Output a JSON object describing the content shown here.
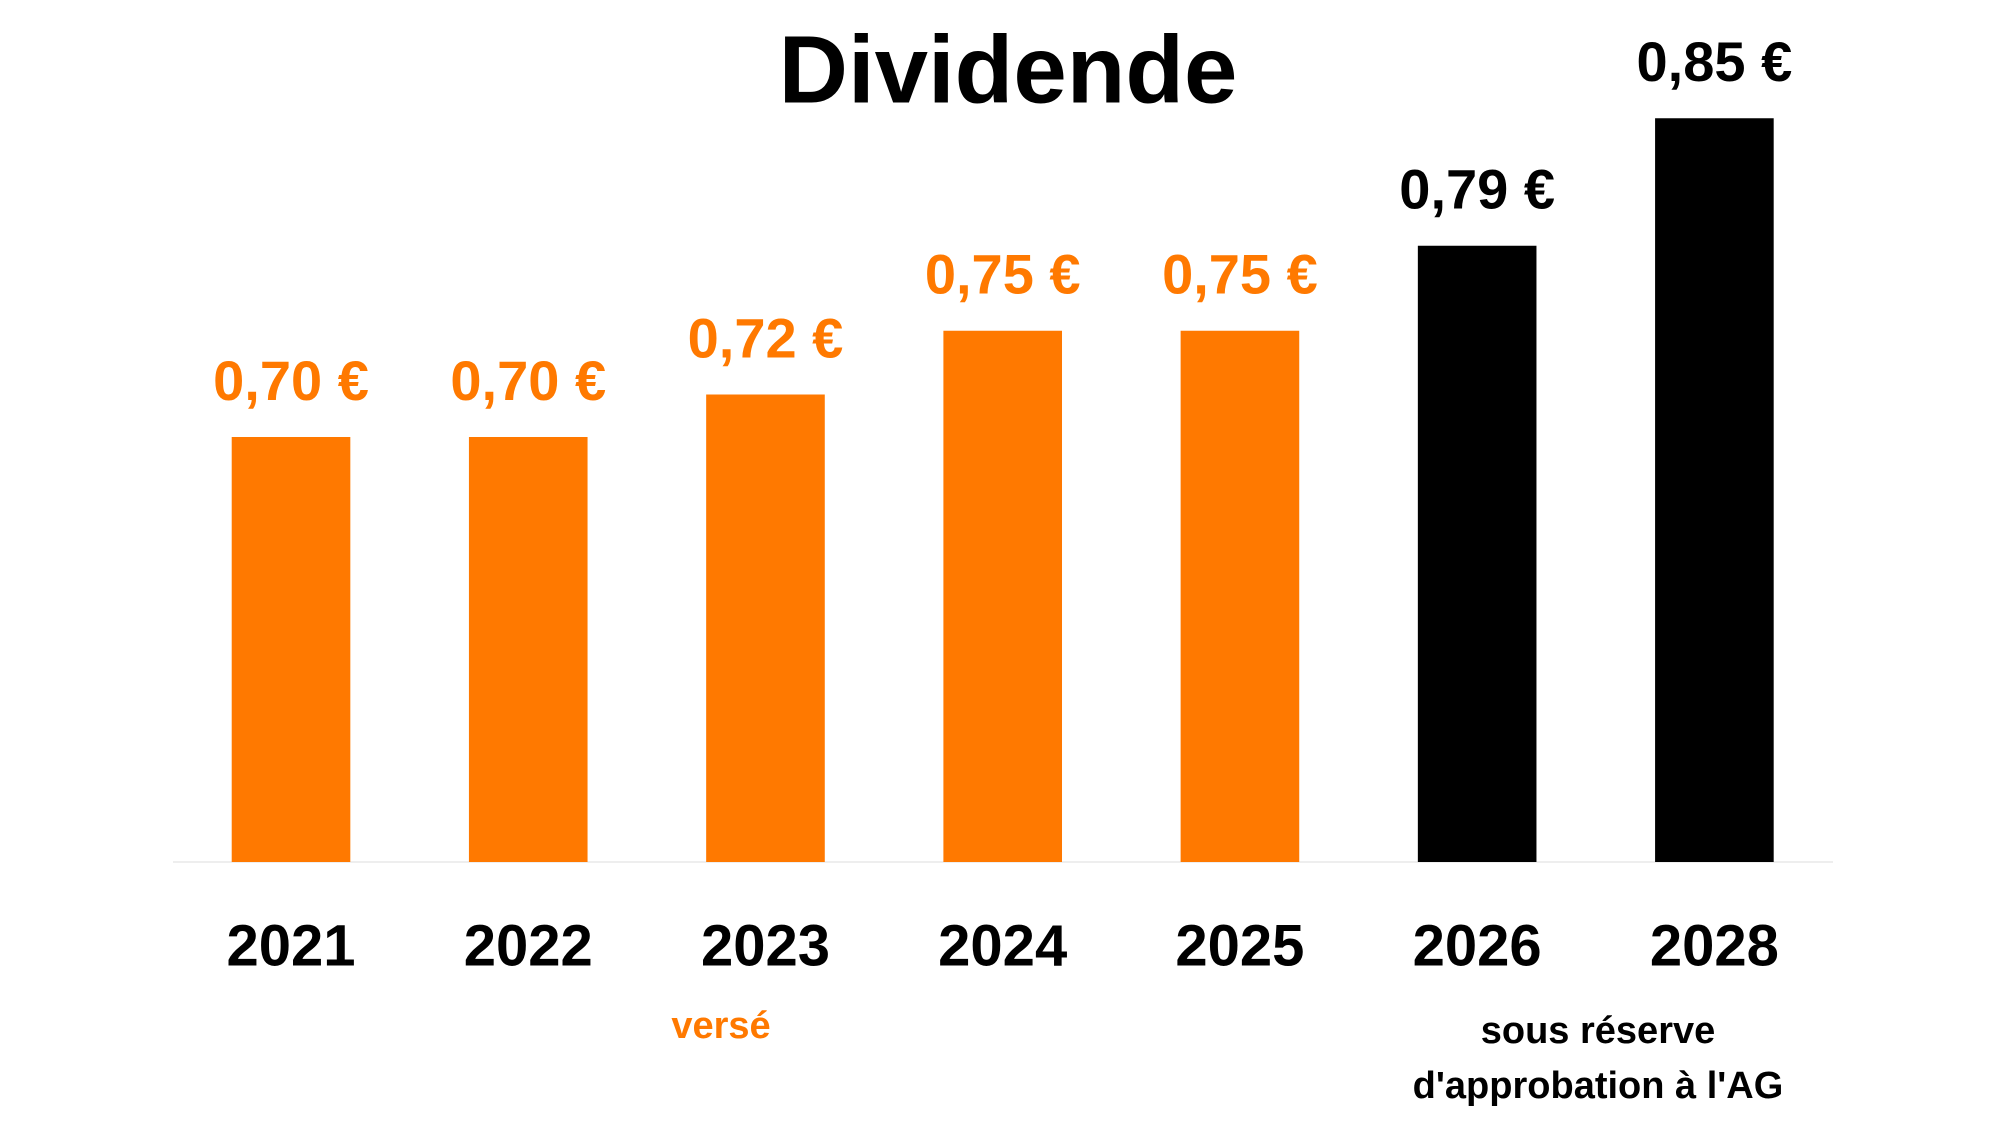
{
  "chart_data": {
    "type": "bar",
    "title": "Dividende",
    "categories": [
      "2021",
      "2022",
      "2023",
      "2024",
      "2025",
      "2026",
      "2028"
    ],
    "values": [
      0.7,
      0.7,
      0.72,
      0.75,
      0.75,
      0.79,
      0.85
    ],
    "value_labels": [
      "0,70 €",
      "0,70 €",
      "0,72 €",
      "0,75 €",
      "0,75 €",
      "0,79 €",
      "0,85 €"
    ],
    "colors": [
      "#ff7900",
      "#ff7900",
      "#ff7900",
      "#ff7900",
      "#ff7900",
      "#000000",
      "#000000"
    ],
    "ylim": [
      0.5,
      0.9
    ],
    "annotations": [
      {
        "lines": [
          "versé"
        ],
        "color": "#ff7900"
      },
      {
        "lines": [
          "sous réserve",
          "d'approbation à l'AG"
        ],
        "color": "#000000"
      }
    ]
  }
}
